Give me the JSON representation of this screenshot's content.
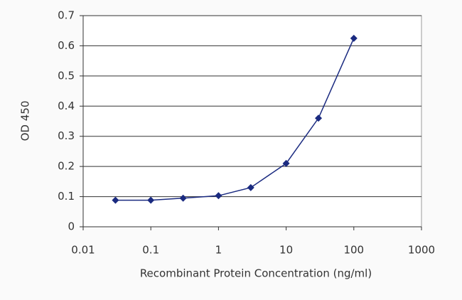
{
  "chart_data": {
    "type": "line",
    "x_label": "Recombinant Protein Concentration (ng/ml)",
    "y_label": "OD 450",
    "x": [
      0.03,
      0.1,
      0.3,
      1,
      3,
      10,
      30,
      100
    ],
    "values": [
      0.088,
      0.088,
      0.095,
      0.103,
      0.13,
      0.21,
      0.36,
      0.625
    ],
    "color": "#1a2a80",
    "xlim": [
      0.01,
      1000
    ],
    "xticks": [
      0.01,
      0.1,
      1,
      10,
      100,
      1000
    ],
    "log_x": true,
    "ylim": [
      0,
      0.7
    ],
    "yticks": [
      0,
      0.1,
      0.2,
      0.3,
      0.4,
      0.5,
      0.6,
      0.7
    ],
    "grid": true
  }
}
